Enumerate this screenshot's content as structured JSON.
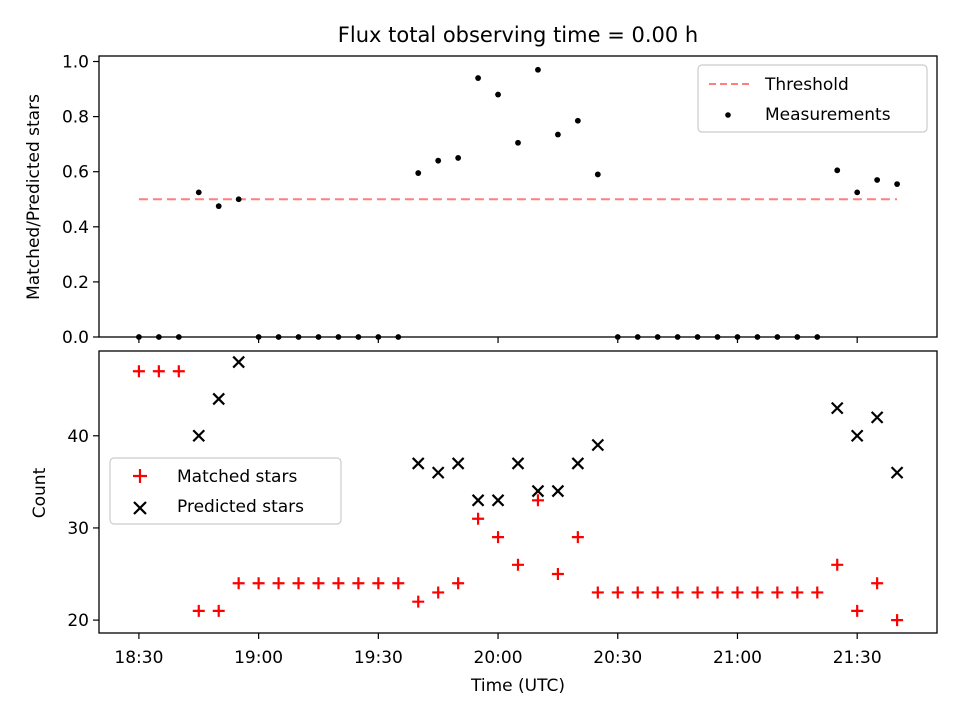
{
  "chart_data": [
    {
      "type": "scatter",
      "title": "Flux total observing time = 0.00 h",
      "xlabel": "",
      "ylabel": "Matched/Predicted stars",
      "ylim": [
        0,
        1.02
      ],
      "yticks": [
        "0.0",
        "0.2",
        "0.4",
        "0.6",
        "0.8",
        "1.0"
      ],
      "ytick_values": [
        0,
        0.2,
        0.4,
        0.6,
        0.8,
        1.0
      ],
      "legend": {
        "placement": "top-right",
        "entries": [
          "Threshold",
          "Measurements"
        ]
      },
      "series": [
        {
          "name": "Threshold",
          "style": "dashed-line",
          "color": "#ff7f7f",
          "x": [
            "18:30",
            "21:40"
          ],
          "values": [
            0.5,
            0.5
          ]
        },
        {
          "name": "Measurements",
          "style": "dot",
          "color": "#000000",
          "x": [
            "18:30",
            "18:35",
            "18:40",
            "18:45",
            "18:50",
            "18:55",
            "19:00",
            "19:05",
            "19:10",
            "19:15",
            "19:20",
            "19:25",
            "19:30",
            "19:35",
            "19:40",
            "19:45",
            "19:50",
            "19:55",
            "20:00",
            "20:05",
            "20:10",
            "20:15",
            "20:20",
            "20:25",
            "20:30",
            "20:35",
            "20:40",
            "20:45",
            "20:50",
            "20:55",
            "21:00",
            "21:05",
            "21:10",
            "21:15",
            "21:20",
            "21:25",
            "21:30",
            "21:35",
            "21:40"
          ],
          "values": [
            0,
            0,
            0,
            0.525,
            0.475,
            0.5,
            0,
            0,
            0,
            0,
            0,
            0,
            0,
            0,
            0.595,
            0.64,
            0.65,
            0.94,
            0.88,
            0.705,
            0.97,
            0.735,
            0.785,
            0.59,
            0,
            0,
            0,
            0,
            0,
            0,
            0,
            0,
            0,
            0,
            0,
            0.605,
            0.525,
            0.57,
            0.555
          ]
        }
      ]
    },
    {
      "type": "scatter",
      "title": "",
      "xlabel": "Time (UTC)",
      "ylabel": "Count",
      "ylim": [
        18.6,
        49.2
      ],
      "yticks": [
        "20",
        "30",
        "40"
      ],
      "ytick_values": [
        20,
        30,
        40
      ],
      "x_range": [
        "18:20",
        "21:50"
      ],
      "xticks": [
        "18:30",
        "19:00",
        "19:30",
        "20:00",
        "20:30",
        "21:00",
        "21:30"
      ],
      "legend": {
        "placement": "center-left",
        "entries": [
          "Matched stars",
          "Predicted stars"
        ]
      },
      "series": [
        {
          "name": "Matched stars",
          "marker": "plus",
          "color": "#ff0000",
          "x": [
            "18:30",
            "18:35",
            "18:40",
            "18:45",
            "18:50",
            "18:55",
            "19:00",
            "19:05",
            "19:10",
            "19:15",
            "19:20",
            "19:25",
            "19:30",
            "19:35",
            "19:40",
            "19:45",
            "19:50",
            "19:55",
            "20:00",
            "20:05",
            "20:10",
            "20:15",
            "20:20",
            "20:25",
            "20:30",
            "20:35",
            "20:40",
            "20:45",
            "20:50",
            "20:55",
            "21:00",
            "21:05",
            "21:10",
            "21:15",
            "21:20",
            "21:25",
            "21:30",
            "21:35",
            "21:40"
          ],
          "values": [
            47,
            47,
            47,
            21,
            21,
            24,
            24,
            24,
            24,
            24,
            24,
            24,
            24,
            24,
            22,
            23,
            24,
            31,
            29,
            26,
            33,
            25,
            29,
            23,
            23,
            23,
            23,
            23,
            23,
            23,
            23,
            23,
            23,
            23,
            23,
            26,
            21,
            24,
            20
          ]
        },
        {
          "name": "Predicted stars",
          "marker": "x",
          "color": "#000000",
          "x": [
            "18:45",
            "18:50",
            "18:55",
            "19:40",
            "19:45",
            "19:50",
            "19:55",
            "20:00",
            "20:05",
            "20:10",
            "20:15",
            "20:20",
            "20:25",
            "21:25",
            "21:30",
            "21:35",
            "21:40"
          ],
          "values": [
            40,
            44,
            48,
            37,
            36,
            37,
            33,
            33,
            37,
            34,
            34,
            37,
            39,
            43,
            40,
            42,
            36
          ]
        }
      ]
    }
  ]
}
